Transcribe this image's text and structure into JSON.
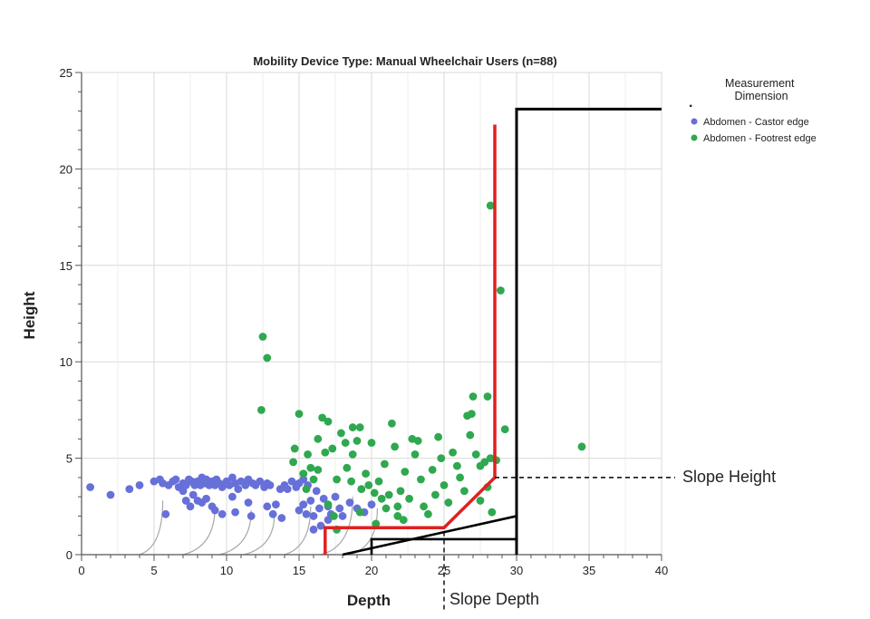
{
  "chart_data": {
    "type": "scatter",
    "title": "Mobility Device Type: Manual Wheelchair Users (n=88)",
    "xlabel": "Depth",
    "ylabel": "Height",
    "xlim": [
      0,
      40
    ],
    "ylim": [
      0,
      25
    ],
    "x_ticks": [
      "0",
      "5",
      "10",
      "15",
      "20",
      "25",
      "30",
      "35",
      "40"
    ],
    "y_ticks": [
      "0",
      "5",
      "10",
      "15",
      "20",
      "25"
    ],
    "grid": true,
    "legend": {
      "title": "Measurement Dimension",
      "placement": "top-right outside",
      "entries": [
        "Abdomen - Castor edge",
        "Abdomen - Footrest edge"
      ]
    },
    "series": [
      {
        "name": "Abdomen - Castor edge",
        "color": "#6670d8",
        "points": [
          [
            0.6,
            3.5
          ],
          [
            2.0,
            3.1
          ],
          [
            3.3,
            3.4
          ],
          [
            4.0,
            3.6
          ],
          [
            5.0,
            3.8
          ],
          [
            5.4,
            3.9
          ],
          [
            5.6,
            3.7
          ],
          [
            5.8,
            2.1
          ],
          [
            6.0,
            3.6
          ],
          [
            6.3,
            3.8
          ],
          [
            6.5,
            3.9
          ],
          [
            6.7,
            3.5
          ],
          [
            7.0,
            3.7
          ],
          [
            7.2,
            3.6
          ],
          [
            7.4,
            3.9
          ],
          [
            7.6,
            3.8
          ],
          [
            7.8,
            3.6
          ],
          [
            7.0,
            3.3
          ],
          [
            7.2,
            2.8
          ],
          [
            7.5,
            2.5
          ],
          [
            7.7,
            3.1
          ],
          [
            8.0,
            3.8
          ],
          [
            8.2,
            3.6
          ],
          [
            8.3,
            4.0
          ],
          [
            8.5,
            3.7
          ],
          [
            8.6,
            3.9
          ],
          [
            8.8,
            3.6
          ],
          [
            8.0,
            2.8
          ],
          [
            8.3,
            2.7
          ],
          [
            8.6,
            2.9
          ],
          [
            9.0,
            3.8
          ],
          [
            9.2,
            3.6
          ],
          [
            9.3,
            3.9
          ],
          [
            9.5,
            3.7
          ],
          [
            9.7,
            3.5
          ],
          [
            9.0,
            2.5
          ],
          [
            9.2,
            2.3
          ],
          [
            9.7,
            2.1
          ],
          [
            10.0,
            3.8
          ],
          [
            10.2,
            3.6
          ],
          [
            10.4,
            4.0
          ],
          [
            10.6,
            3.7
          ],
          [
            10.8,
            3.4
          ],
          [
            10.4,
            3.0
          ],
          [
            10.6,
            2.2
          ],
          [
            11.0,
            3.8
          ],
          [
            11.3,
            3.6
          ],
          [
            11.5,
            3.9
          ],
          [
            11.8,
            3.7
          ],
          [
            11.5,
            2.7
          ],
          [
            11.7,
            2.0
          ],
          [
            12.0,
            3.6
          ],
          [
            12.3,
            3.8
          ],
          [
            12.6,
            3.5
          ],
          [
            12.8,
            3.7
          ],
          [
            12.8,
            2.5
          ],
          [
            13.0,
            3.6
          ],
          [
            13.2,
            2.1
          ],
          [
            13.4,
            2.6
          ],
          [
            13.7,
            3.4
          ],
          [
            13.8,
            1.9
          ],
          [
            14.0,
            3.6
          ],
          [
            14.2,
            3.4
          ],
          [
            14.5,
            3.8
          ],
          [
            14.8,
            3.5
          ],
          [
            15.0,
            3.7
          ],
          [
            15.3,
            3.9
          ],
          [
            15.0,
            2.3
          ],
          [
            15.3,
            2.6
          ],
          [
            15.5,
            2.1
          ],
          [
            15.6,
            3.6
          ],
          [
            15.8,
            2.8
          ],
          [
            16.0,
            2.0
          ],
          [
            16.2,
            3.3
          ],
          [
            16.4,
            2.4
          ],
          [
            16.5,
            1.5
          ],
          [
            16.7,
            2.9
          ],
          [
            17.0,
            2.5
          ],
          [
            17.2,
            2.1
          ],
          [
            17.5,
            3.0
          ],
          [
            17.8,
            2.4
          ],
          [
            18.0,
            2.0
          ],
          [
            18.5,
            2.7
          ],
          [
            19.0,
            2.4
          ],
          [
            19.5,
            2.2
          ],
          [
            20.0,
            2.6
          ],
          [
            16.0,
            1.3
          ],
          [
            17.0,
            1.8
          ]
        ]
      },
      {
        "name": "Abdomen - Footrest edge",
        "color": "#2fa84f",
        "points": [
          [
            12.5,
            11.3
          ],
          [
            12.8,
            10.2
          ],
          [
            12.4,
            7.5
          ],
          [
            15.0,
            7.3
          ],
          [
            14.6,
            4.8
          ],
          [
            14.7,
            5.5
          ],
          [
            15.3,
            4.2
          ],
          [
            15.5,
            3.4
          ],
          [
            15.8,
            4.5
          ],
          [
            15.6,
            5.2
          ],
          [
            16.0,
            3.9
          ],
          [
            16.3,
            4.4
          ],
          [
            16.3,
            6.0
          ],
          [
            16.8,
            5.3
          ],
          [
            16.6,
            7.1
          ],
          [
            17.0,
            6.9
          ],
          [
            17.0,
            2.6
          ],
          [
            17.3,
            5.5
          ],
          [
            17.6,
            3.9
          ],
          [
            17.4,
            2.0
          ],
          [
            17.6,
            1.3
          ],
          [
            17.9,
            6.3
          ],
          [
            18.2,
            5.8
          ],
          [
            18.3,
            4.5
          ],
          [
            18.6,
            3.8
          ],
          [
            18.7,
            5.2
          ],
          [
            18.7,
            6.6
          ],
          [
            19.0,
            5.9
          ],
          [
            19.2,
            6.6
          ],
          [
            19.3,
            3.4
          ],
          [
            19.2,
            2.2
          ],
          [
            19.6,
            4.2
          ],
          [
            19.8,
            3.6
          ],
          [
            20.0,
            5.8
          ],
          [
            20.2,
            3.2
          ],
          [
            20.3,
            1.6
          ],
          [
            20.5,
            3.8
          ],
          [
            20.7,
            2.9
          ],
          [
            20.9,
            4.7
          ],
          [
            21.0,
            2.4
          ],
          [
            21.2,
            3.1
          ],
          [
            21.4,
            6.8
          ],
          [
            21.6,
            5.6
          ],
          [
            21.8,
            2.5
          ],
          [
            21.8,
            2.0
          ],
          [
            22.0,
            3.3
          ],
          [
            22.2,
            1.8
          ],
          [
            22.3,
            4.3
          ],
          [
            22.6,
            2.9
          ],
          [
            22.8,
            6.0
          ],
          [
            23.0,
            5.2
          ],
          [
            23.2,
            5.9
          ],
          [
            23.4,
            3.9
          ],
          [
            23.6,
            2.5
          ],
          [
            23.9,
            2.1
          ],
          [
            24.2,
            4.4
          ],
          [
            24.4,
            3.1
          ],
          [
            24.6,
            6.1
          ],
          [
            24.8,
            5.0
          ],
          [
            25.0,
            3.6
          ],
          [
            25.3,
            2.7
          ],
          [
            25.6,
            5.3
          ],
          [
            25.9,
            4.6
          ],
          [
            26.1,
            4.0
          ],
          [
            26.4,
            3.3
          ],
          [
            26.6,
            7.2
          ],
          [
            26.8,
            6.2
          ],
          [
            26.9,
            7.3
          ],
          [
            27.0,
            8.2
          ],
          [
            27.2,
            5.2
          ],
          [
            27.5,
            4.6
          ],
          [
            27.5,
            2.8
          ],
          [
            27.8,
            4.8
          ],
          [
            28.0,
            3.5
          ],
          [
            28.2,
            5.0
          ],
          [
            28.0,
            8.2
          ],
          [
            28.2,
            18.1
          ],
          [
            28.3,
            2.2
          ],
          [
            28.6,
            4.9
          ],
          [
            28.9,
            13.7
          ],
          [
            29.2,
            6.5
          ],
          [
            34.5,
            5.6
          ]
        ]
      }
    ],
    "overlay": {
      "red_path": [
        [
          16.8,
          0
        ],
        [
          16.8,
          1.4
        ],
        [
          25.0,
          1.4
        ],
        [
          28.5,
          4.0
        ],
        [
          28.5,
          22.3
        ]
      ],
      "black_box": [
        [
          30,
          0
        ],
        [
          30,
          23.1
        ],
        [
          40,
          23.1
        ]
      ],
      "slope_lines": [
        [
          [
            18.0,
            0
          ],
          [
            30,
            2.0
          ]
        ],
        [
          [
            20.0,
            0
          ],
          [
            20.0,
            0.8
          ],
          [
            30,
            0.8
          ]
        ]
      ],
      "slope_height_label": "Slope Height",
      "slope_height_value": 4.0,
      "slope_depth_label": "Slope Depth",
      "slope_depth_value": 25.0
    },
    "legend_marker": "."
  }
}
